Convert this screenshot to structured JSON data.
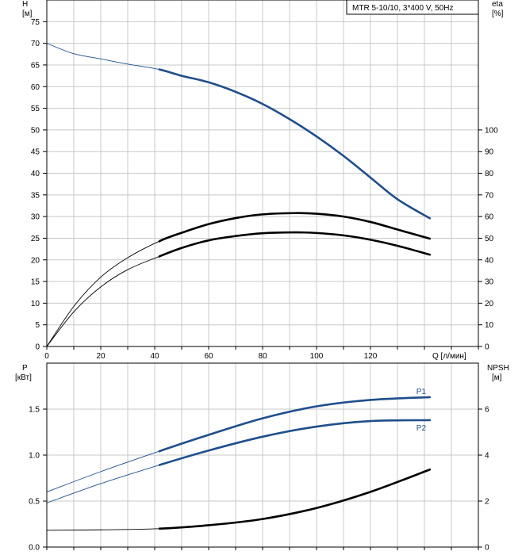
{
  "chart_data": [
    {
      "type": "line",
      "title": "MTR 5-10/10, 3*400 V, 50Hz",
      "x_axis": {
        "label": "Q [л/мин]",
        "range": [
          0,
          160
        ],
        "ticks": [
          "0",
          "20",
          "40",
          "60",
          "80",
          "100",
          "120"
        ]
      },
      "left_axis": {
        "label_top": "H",
        "label_unit": "[м]",
        "range": [
          0,
          80
        ],
        "ticks": [
          "0",
          "5",
          "10",
          "15",
          "20",
          "25",
          "30",
          "35",
          "40",
          "45",
          "50",
          "55",
          "60",
          "65",
          "70",
          "75"
        ]
      },
      "right_axis": {
        "label_top": "eta",
        "label_unit": "[%]",
        "range": [
          0,
          160
        ],
        "ticks": [
          "0",
          "10",
          "20",
          "30",
          "40",
          "50",
          "60",
          "70",
          "80",
          "90",
          "100"
        ]
      },
      "grid": true,
      "series": [
        {
          "axis": "left",
          "color": "#1f4e8c",
          "operating_range": [
            41.5,
            142
          ],
          "points": [
            [
              0,
              70
            ],
            [
              10,
              67.6
            ],
            [
              20,
              66.4
            ],
            [
              30,
              65.2
            ],
            [
              41.5,
              64
            ],
            [
              50,
              62.5
            ],
            [
              60,
              61
            ],
            [
              70,
              58.8
            ],
            [
              80,
              56
            ],
            [
              90,
              52.5
            ],
            [
              100,
              48.5
            ],
            [
              110,
              44
            ],
            [
              120,
              39
            ],
            [
              130,
              34
            ],
            [
              142,
              29.6
            ]
          ]
        },
        {
          "axis": "right",
          "color": "#000000",
          "operating_range": [
            41.5,
            142
          ],
          "points": [
            [
              0,
              0
            ],
            [
              10,
              18.5
            ],
            [
              20,
              32
            ],
            [
              30,
              41
            ],
            [
              41.5,
              48.5
            ],
            [
              50,
              52.5
            ],
            [
              60,
              56.5
            ],
            [
              70,
              59.3
            ],
            [
              80,
              61
            ],
            [
              92,
              61.6
            ],
            [
              100,
              61.3
            ],
            [
              110,
              60
            ],
            [
              120,
              57.5
            ],
            [
              130,
              54
            ],
            [
              142,
              49.8
            ]
          ]
        },
        {
          "axis": "right",
          "color": "#000000",
          "operating_range": [
            41.5,
            142
          ],
          "points": [
            [
              0,
              0
            ],
            [
              10,
              16
            ],
            [
              20,
              27.5
            ],
            [
              30,
              35.5
            ],
            [
              41.5,
              41.5
            ],
            [
              50,
              45.5
            ],
            [
              60,
              49
            ],
            [
              70,
              51
            ],
            [
              80,
              52.3
            ],
            [
              92,
              52.7
            ],
            [
              100,
              52.4
            ],
            [
              110,
              51.3
            ],
            [
              120,
              49.3
            ],
            [
              130,
              46.5
            ],
            [
              142,
              42.4
            ]
          ]
        }
      ]
    },
    {
      "type": "line",
      "x_axis": {
        "range": [
          0,
          160
        ]
      },
      "left_axis": {
        "label_top": "P",
        "label_unit": "[кВт]",
        "range": [
          0,
          2
        ],
        "ticks": [
          "0.0",
          "0.5",
          "1.0",
          "1.5"
        ]
      },
      "right_axis": {
        "label_top": "NPSH",
        "label_unit": "[м]",
        "range": [
          0,
          8
        ],
        "ticks": [
          "0",
          "2",
          "4",
          "6"
        ]
      },
      "grid": true,
      "series": [
        {
          "name": "P1",
          "axis": "left",
          "color": "#1f4e8c",
          "operating_range": [
            41.5,
            142
          ],
          "points": [
            [
              0,
              0.6
            ],
            [
              20,
              0.82
            ],
            [
              41.5,
              1.04
            ],
            [
              60,
              1.22
            ],
            [
              80,
              1.4
            ],
            [
              100,
              1.53
            ],
            [
              120,
              1.6
            ],
            [
              142,
              1.63
            ]
          ]
        },
        {
          "name": "P2",
          "axis": "left",
          "color": "#1f4e8c",
          "operating_range": [
            41.5,
            142
          ],
          "points": [
            [
              0,
              0.48
            ],
            [
              20,
              0.69
            ],
            [
              41.5,
              0.89
            ],
            [
              60,
              1.05
            ],
            [
              80,
              1.2
            ],
            [
              100,
              1.31
            ],
            [
              120,
              1.37
            ],
            [
              142,
              1.38
            ]
          ]
        },
        {
          "axis": "right",
          "color": "#000000",
          "operating_range": [
            41.5,
            142
          ],
          "points": [
            [
              0,
              0.73
            ],
            [
              20,
              0.75
            ],
            [
              41.5,
              0.8
            ],
            [
              60,
              0.95
            ],
            [
              80,
              1.22
            ],
            [
              100,
              1.7
            ],
            [
              120,
              2.4
            ],
            [
              142,
              3.37
            ]
          ]
        }
      ]
    }
  ]
}
